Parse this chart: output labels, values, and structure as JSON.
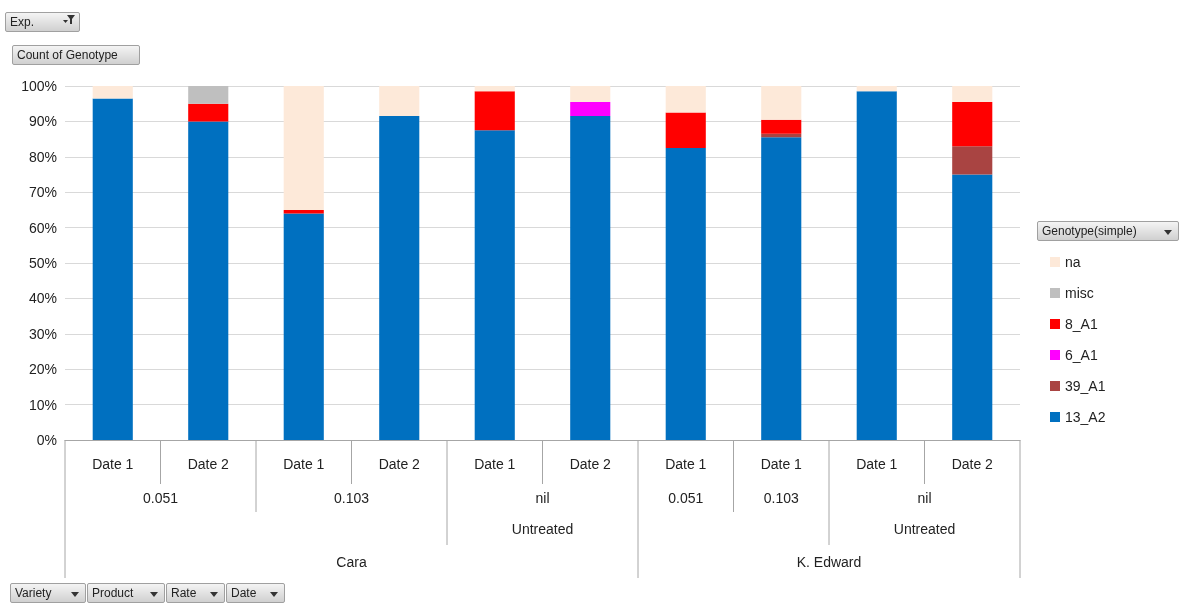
{
  "chart_data": {
    "type": "bar",
    "stacked": true,
    "categories": [
      "Date 1",
      "Date 2",
      "Date 1",
      "Date 2",
      "Date 1",
      "Date 2",
      "Date 1",
      "Date 1",
      "Date 1",
      "Date 2"
    ],
    "series": [
      {
        "name": "13_A2",
        "color": "#0070c0",
        "values": [
          96.5,
          90,
          64,
          91.5,
          87.5,
          91.5,
          82.5,
          85.5,
          98.5,
          75
        ]
      },
      {
        "name": "39_A1",
        "color": "#a94442",
        "values": [
          0,
          0,
          0,
          0,
          0,
          0,
          0,
          1,
          0,
          8
        ]
      },
      {
        "name": "6_A1",
        "color": "#ff00ff",
        "values": [
          0,
          0,
          0,
          0,
          0,
          4,
          0,
          0,
          0,
          0
        ]
      },
      {
        "name": "8_A1",
        "color": "#ff0000",
        "values": [
          0,
          5,
          1,
          0,
          11,
          0,
          10,
          4,
          0,
          12.5
        ]
      },
      {
        "name": "misc",
        "color": "#bfbfbf",
        "values": [
          0,
          5,
          0,
          0,
          0,
          0,
          0,
          0,
          0,
          0
        ]
      },
      {
        "name": "na",
        "color": "#fde9d9",
        "values": [
          3.5,
          0,
          35,
          8.5,
          1.5,
          4.5,
          7.5,
          9.5,
          1.5,
          4.5
        ]
      }
    ],
    "ylim": [
      0,
      100
    ],
    "yticks": [
      {
        "value": 0,
        "label": "0%"
      },
      {
        "value": 10,
        "label": "10%"
      },
      {
        "value": 20,
        "label": "20%"
      },
      {
        "value": 30,
        "label": "30%"
      },
      {
        "value": 40,
        "label": "40%"
      },
      {
        "value": 50,
        "label": "50%"
      },
      {
        "value": 60,
        "label": "60%"
      },
      {
        "value": 70,
        "label": "70%"
      },
      {
        "value": 80,
        "label": "80%"
      },
      {
        "value": 90,
        "label": "90%"
      },
      {
        "value": 100,
        "label": "100%"
      }
    ],
    "grid": "y",
    "legend": "right",
    "legend_title": "Genotype(simple)",
    "annotations": [
      "0.051",
      "0.103",
      "nil",
      "0.051",
      "0.103",
      "nil",
      "Untreated",
      "Untreated",
      "Cara",
      "K. Edward",
      "Exp.",
      "Count of Genotype",
      "Variety",
      "Product",
      "Rate",
      "Date"
    ]
  }
}
